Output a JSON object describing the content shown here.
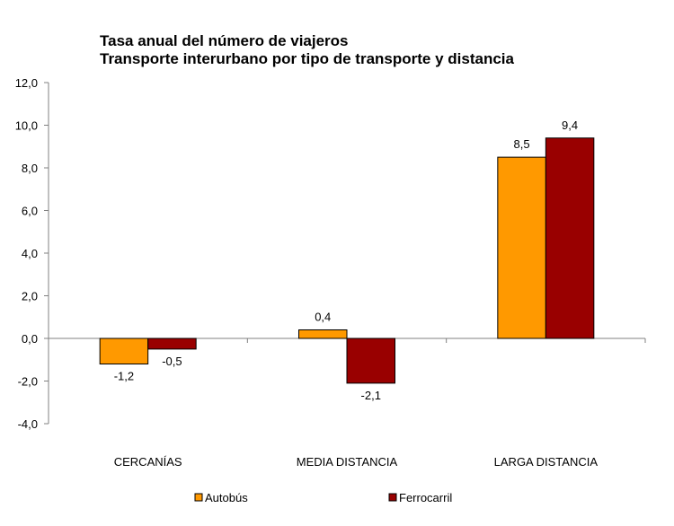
{
  "chart_data": {
    "type": "bar",
    "title": "Tasa anual del número de viajeros",
    "subtitle": "Transporte interurbano por tipo de transporte y distancia",
    "xlabel": "",
    "ylabel": "",
    "categories": [
      "CERCANÍAS",
      "MEDIA DISTANCIA",
      "LARGA DISTANCIA"
    ],
    "series": [
      {
        "name": "Autobús",
        "color": "#FF9900",
        "values": [
          -1.2,
          0.4,
          8.5
        ],
        "labels": [
          "-1,2",
          "0,4",
          "8,5"
        ]
      },
      {
        "name": "Ferrocarril",
        "color": "#990000",
        "values": [
          -0.5,
          -2.1,
          9.4
        ],
        "labels": [
          "-0,5",
          "-2,1",
          "9,4"
        ]
      }
    ],
    "ylim": [
      -4,
      12
    ],
    "yticks": [
      12,
      10,
      8,
      6,
      4,
      2,
      0,
      -2,
      -4
    ],
    "ytick_labels": [
      "12,0",
      "10,0",
      "8,0",
      "6,0",
      "4,0",
      "2,0",
      "0,0",
      "-2,0",
      "-4,0"
    ],
    "grid": false,
    "legend_position": "bottom"
  }
}
